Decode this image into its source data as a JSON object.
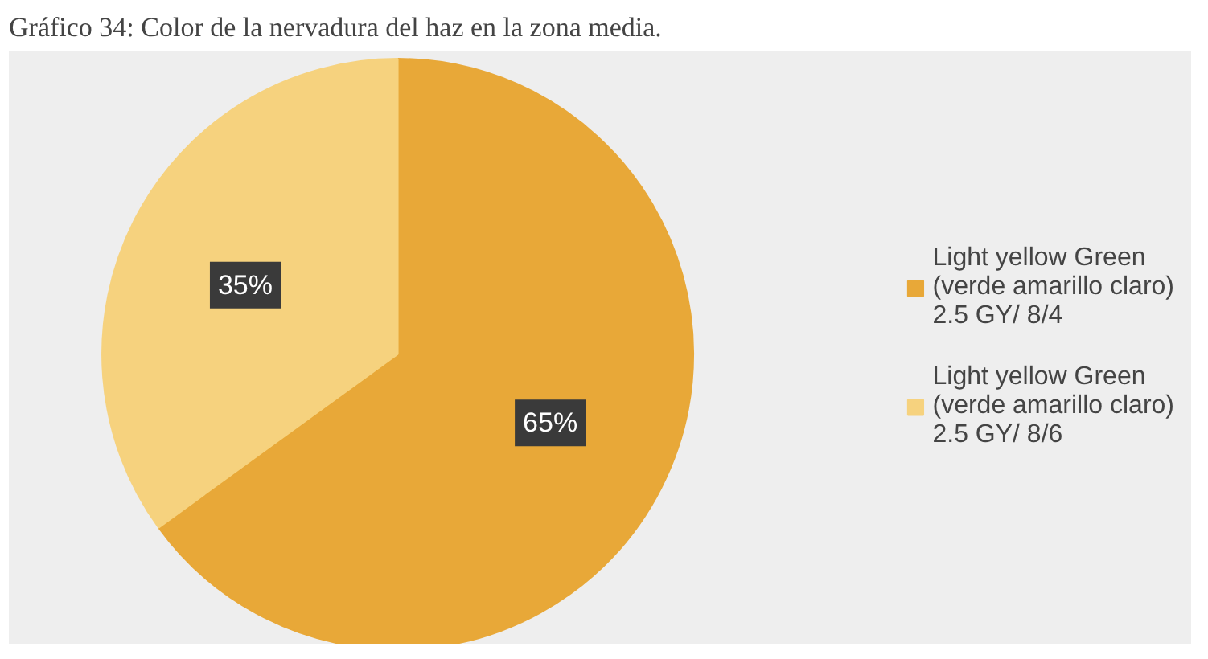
{
  "chart_data": {
    "type": "pie",
    "title": "Gráfico 34: Color de la nervadura del haz en la zona media.",
    "categories": [
      "Light yellow Green\n(verde amarillo claro)\n2.5 GY/ 8/4",
      "Light yellow Green\n(verde amarillo claro)\n2.5 GY/ 8/6"
    ],
    "values": [
      65,
      35
    ],
    "colors": [
      "#e8a838",
      "#f6d27e"
    ],
    "value_labels": [
      "65%",
      "35%"
    ],
    "legend": "right"
  }
}
